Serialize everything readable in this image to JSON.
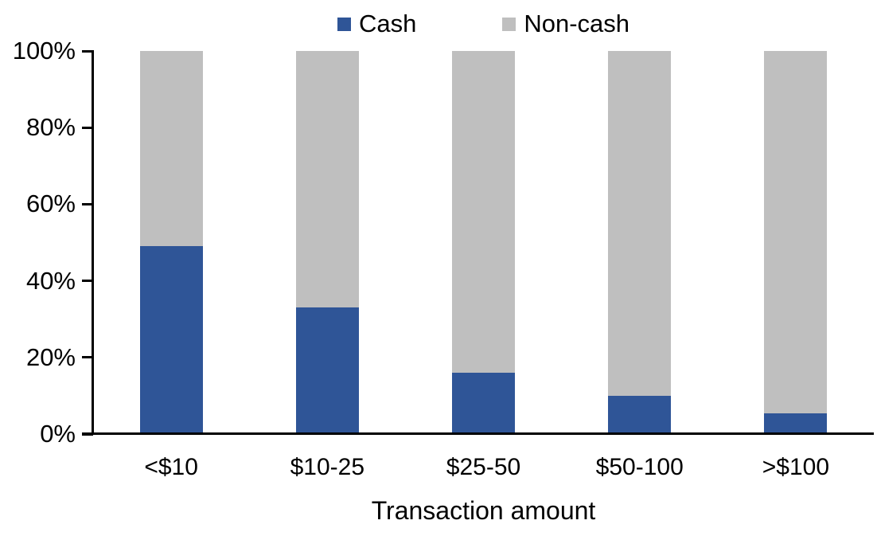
{
  "legend": {
    "items": [
      {
        "label": "Cash",
        "color": "#2F5597"
      },
      {
        "label": "Non-cash",
        "color": "#BFBFBF"
      }
    ]
  },
  "x_axis": {
    "title": "Transaction amount"
  },
  "y_axis": {
    "ticks": [
      "100%",
      "80%",
      "60%",
      "40%",
      "20%",
      "0%"
    ]
  },
  "chart_data": {
    "type": "bar",
    "subtype": "stacked-100-percent",
    "title": "",
    "xlabel": "Transaction amount",
    "ylabel": "",
    "categories": [
      "<$10",
      "$10-25",
      "$25-50",
      "$50-100",
      ">$100"
    ],
    "series": [
      {
        "name": "Cash",
        "color": "#2F5597",
        "values": [
          49,
          33,
          16,
          10,
          5.5
        ]
      },
      {
        "name": "Non-cash",
        "color": "#BFBFBF",
        "values": [
          51,
          67,
          84,
          90,
          94.5
        ]
      }
    ],
    "ylim": [
      0,
      100
    ],
    "y_tick_interval": 20,
    "y_tick_format": "percent",
    "grid": false,
    "legend_position": "top-center"
  }
}
